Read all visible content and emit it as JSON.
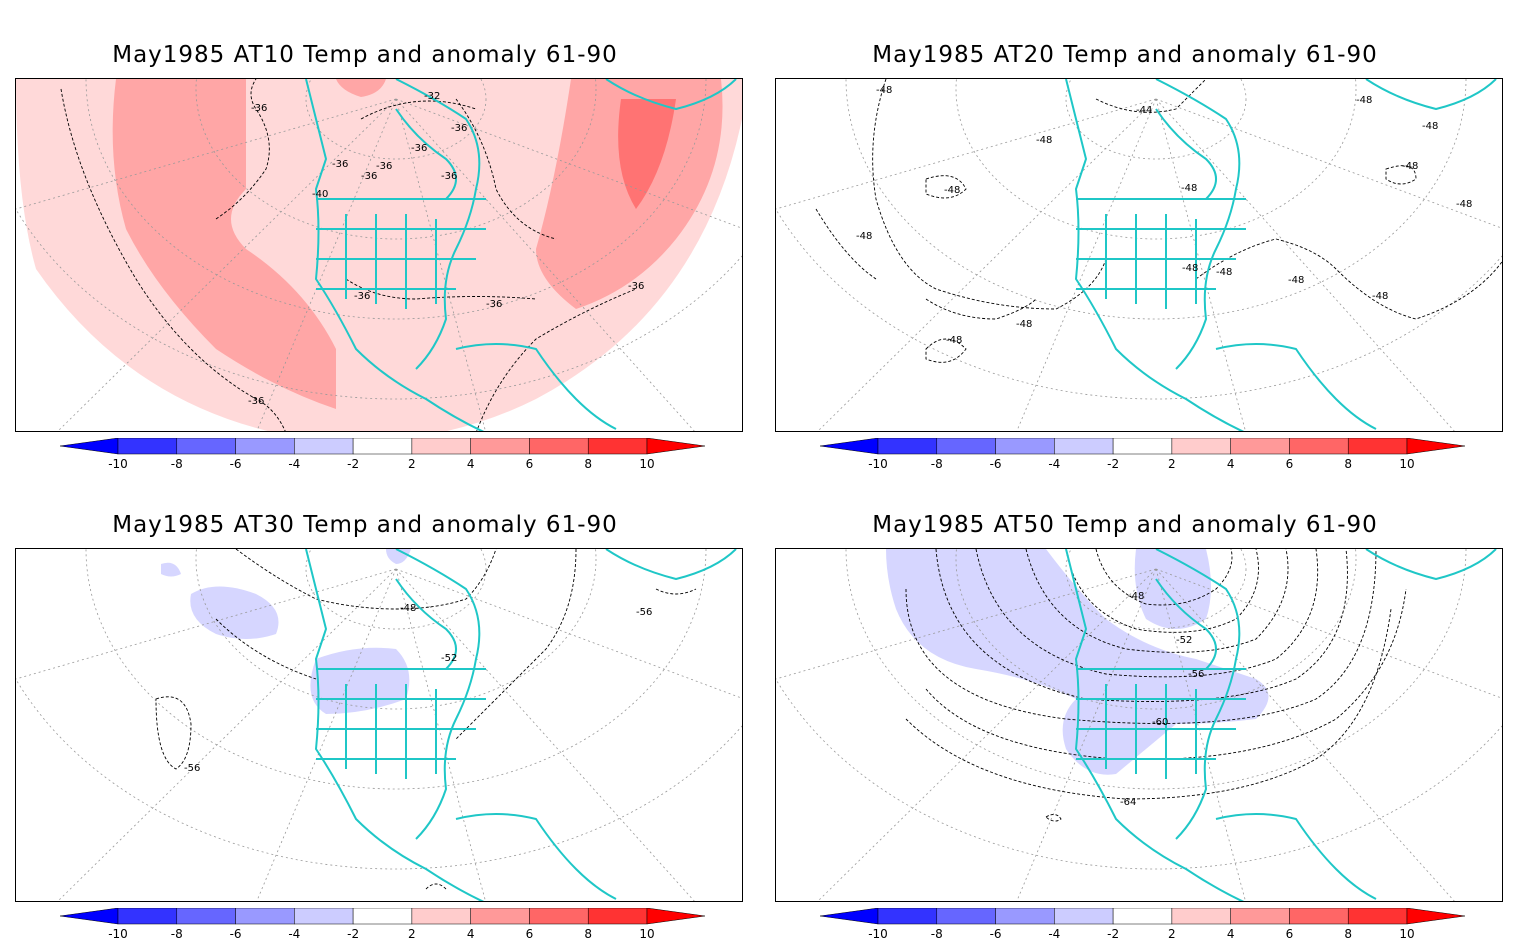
{
  "panels": [
    {
      "title": "May1985 AT10 Temp and anomaly 61-90",
      "contour_labels": [
        "-32",
        "-36",
        "-36",
        "-36",
        "-36",
        "-36",
        "-36",
        "-40",
        "-36",
        "-36",
        "-36",
        "-36",
        "-36"
      ],
      "anomaly_shading": "positive"
    },
    {
      "title": "May1985 AT20 Temp and anomaly 61-90",
      "contour_labels": [
        "-48",
        "-44",
        "-48",
        "-48",
        "-48",
        "-48",
        "-48",
        "-48",
        "-48",
        "-48",
        "-48",
        "-48",
        "-48",
        "-48",
        "-48",
        "-48"
      ],
      "anomaly_shading": "none"
    },
    {
      "title": "May1985 AT30 Temp and anomaly 61-90",
      "contour_labels": [
        "-48",
        "-52",
        "-56",
        "-56"
      ],
      "anomaly_shading": "weak-negative"
    },
    {
      "title": "May1985 AT50 Temp and anomaly 61-90",
      "contour_labels": [
        "-48",
        "-52",
        "-56",
        "-60",
        "-64"
      ],
      "anomaly_shading": "weak-negative"
    }
  ],
  "colorbar": {
    "ticks": [
      "-10",
      "-8",
      "-6",
      "-4",
      "-2",
      "2",
      "4",
      "6",
      "8",
      "10"
    ],
    "colors": [
      "#0000ff",
      "#3333ff",
      "#6666ff",
      "#9999ff",
      "#ccccff",
      "#ffffff",
      "#ffcccc",
      "#ff9999",
      "#ff6666",
      "#ff3333",
      "#ff0000"
    ]
  },
  "colors": {
    "coastline": "#1fc7c7",
    "contour": "#000000",
    "grid": "#999999",
    "anomaly_pos_weak": "#ffd9d9",
    "anomaly_pos_mid": "#ffa6a6",
    "anomaly_pos_strong": "#ff7373",
    "anomaly_neg_weak": "#d6d6ff"
  }
}
